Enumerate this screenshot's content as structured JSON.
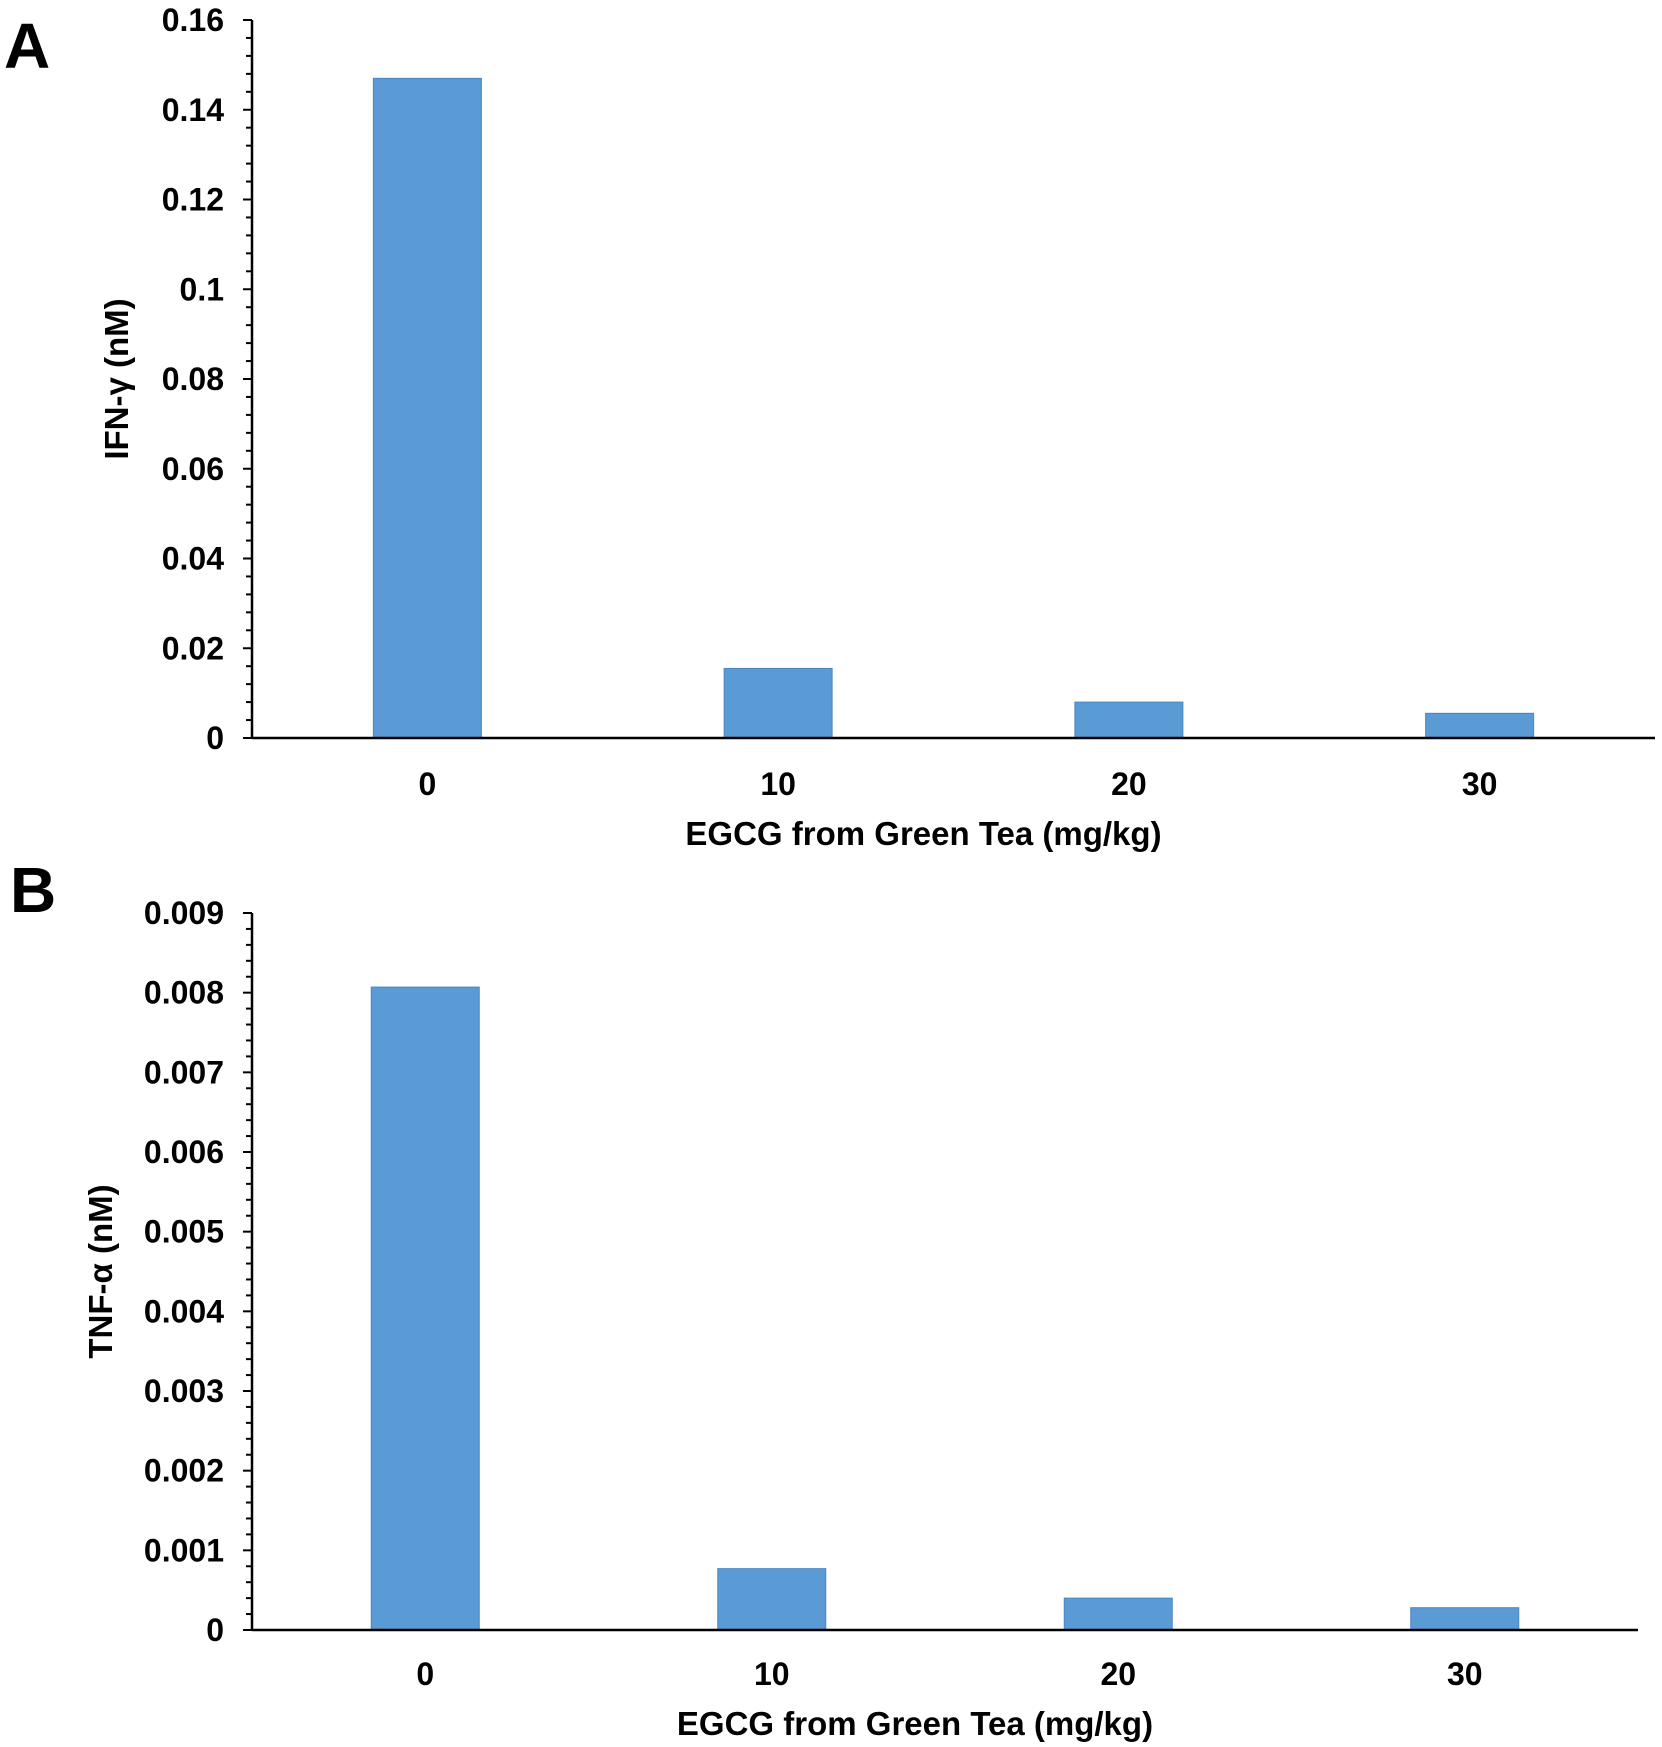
{
  "colors": {
    "bar": "#5b9bd5",
    "bar_edge": "#4a86c0",
    "axis": "#000000"
  },
  "chart_data": [
    {
      "panel": "A",
      "type": "bar",
      "categories": [
        "0",
        "10",
        "20",
        "30"
      ],
      "values": [
        0.147,
        0.0155,
        0.008,
        0.0055
      ],
      "xlabel": "EGCG from Green Tea (mg/kg)",
      "ylabel": "IFN-γ (nM)",
      "ylim": [
        0,
        0.16
      ],
      "yticks": [
        "0",
        "0.02",
        "0.04",
        "0.06",
        "0.08",
        "0.1",
        "0.12",
        "0.14",
        "0.16"
      ],
      "grid": false
    },
    {
      "panel": "B",
      "type": "bar",
      "categories": [
        "0",
        "10",
        "20",
        "30"
      ],
      "values": [
        0.00807,
        0.00077,
        0.0004,
        0.00028
      ],
      "xlabel": "EGCG from Green Tea (mg/kg)",
      "ylabel": "TNF-α (nM)",
      "ylim": [
        0,
        0.009
      ],
      "yticks": [
        "0",
        "0.001",
        "0.002",
        "0.003",
        "0.004",
        "0.005",
        "0.006",
        "0.007",
        "0.008",
        "0.009"
      ],
      "grid": false
    }
  ]
}
